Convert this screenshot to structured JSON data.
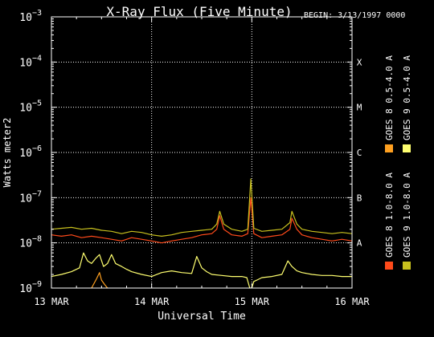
{
  "chart_data": {
    "type": "line",
    "title": "X-Ray Flux (Five Minute)",
    "begin_label": "BEGIN: 3/13/1997 0000",
    "ylabel": "Watts meter2",
    "xlabel": "Universal Time",
    "y_scale": "log",
    "ylim": [
      1e-09,
      0.001
    ],
    "y_ticks": [
      {
        "value": 1e-09,
        "base": "10",
        "exp": "−9"
      },
      {
        "value": 1e-08,
        "base": "10",
        "exp": "−8"
      },
      {
        "value": 1e-07,
        "base": "10",
        "exp": "−7"
      },
      {
        "value": 1e-06,
        "base": "10",
        "exp": "−6"
      },
      {
        "value": 1e-05,
        "base": "10",
        "exp": "−5"
      },
      {
        "value": 0.0001,
        "base": "10",
        "exp": "−4"
      },
      {
        "value": 0.001,
        "base": "10",
        "exp": "−3"
      }
    ],
    "xlim": [
      "1997-03-13",
      "1997-03-16"
    ],
    "x_ticks": [
      {
        "value": 0,
        "label": "13 MAR"
      },
      {
        "value": 1,
        "label": "14 MAR"
      },
      {
        "value": 2,
        "label": "15 MAR"
      },
      {
        "value": 3,
        "label": "16 MAR"
      }
    ],
    "flare_classes": [
      {
        "label": "A",
        "value": 1e-08
      },
      {
        "label": "B",
        "value": 1e-07
      },
      {
        "label": "C",
        "value": 1e-06
      },
      {
        "label": "M",
        "value": 1e-05
      },
      {
        "label": "X",
        "value": 0.0001
      }
    ],
    "grid": true,
    "legend_position": "right, vertical",
    "series": [
      {
        "name": "GOES 8 1.0-8.0 A",
        "color": "#ff4a1a",
        "x": [
          0.0,
          0.1,
          0.2,
          0.3,
          0.4,
          0.5,
          0.6,
          0.7,
          0.8,
          0.9,
          1.0,
          1.1,
          1.2,
          1.3,
          1.4,
          1.5,
          1.6,
          1.65,
          1.68,
          1.72,
          1.8,
          1.9,
          1.96,
          1.99,
          2.02,
          2.1,
          2.2,
          2.3,
          2.38,
          2.4,
          2.45,
          2.5,
          2.6,
          2.7,
          2.8,
          2.9,
          3.0
        ],
        "y": [
          1.5e-08,
          1.4e-08,
          1.5e-08,
          1.3e-08,
          1.4e-08,
          1.3e-08,
          1.2e-08,
          1.1e-08,
          1.3e-08,
          1.2e-08,
          1.1e-08,
          1e-08,
          1.1e-08,
          1.2e-08,
          1.3e-08,
          1.5e-08,
          1.6e-08,
          2e-08,
          4e-08,
          2e-08,
          1.5e-08,
          1.4e-08,
          1.6e-08,
          1e-07,
          1.6e-08,
          1.3e-08,
          1.4e-08,
          1.5e-08,
          2e-08,
          3.5e-08,
          2e-08,
          1.5e-08,
          1.3e-08,
          1.2e-08,
          1.1e-08,
          1.2e-08,
          1.1e-08
        ]
      },
      {
        "name": "GOES 8 0.5-4.0 A",
        "color": "#ffa020",
        "x": [
          0.4,
          0.45,
          0.48,
          0.5,
          0.53,
          0.56
        ],
        "y": [
          1e-09,
          1.6e-09,
          2.2e-09,
          1.5e-09,
          1.2e-09,
          1e-09
        ]
      },
      {
        "name": "GOES 9 0.5-4.0 A",
        "color": "#ffff70",
        "x": [
          0.0,
          0.1,
          0.2,
          0.28,
          0.32,
          0.36,
          0.4,
          0.44,
          0.48,
          0.52,
          0.56,
          0.6,
          0.64,
          0.7,
          0.75,
          0.8,
          0.9,
          1.0,
          1.1,
          1.2,
          1.3,
          1.4,
          1.45,
          1.5,
          1.55,
          1.6,
          1.7,
          1.8,
          1.9,
          1.95,
          1.98,
          2.0,
          2.02,
          2.05,
          2.1,
          2.2,
          2.3,
          2.36,
          2.4,
          2.45,
          2.5,
          2.6,
          2.7,
          2.8,
          2.9,
          3.0
        ],
        "y": [
          1.8e-09,
          2e-09,
          2.3e-09,
          2.8e-09,
          6e-09,
          4e-09,
          3.5e-09,
          4.5e-09,
          5.5e-09,
          3e-09,
          3.5e-09,
          5.5e-09,
          3.5e-09,
          3e-09,
          2.6e-09,
          2.3e-09,
          2e-09,
          1.8e-09,
          2.2e-09,
          2.4e-09,
          2.2e-09,
          2.1e-09,
          5e-09,
          2.8e-09,
          2.3e-09,
          2e-09,
          1.9e-09,
          1.8e-09,
          1.8e-09,
          1.7e-09,
          1e-09,
          1e-09,
          1.4e-09,
          1.5e-09,
          1.7e-09,
          1.8e-09,
          2e-09,
          4e-09,
          3e-09,
          2.4e-09,
          2.2e-09,
          2e-09,
          1.9e-09,
          1.9e-09,
          1.8e-09,
          1.8e-09
        ]
      },
      {
        "name": "GOES 9 1.0-8.0 A",
        "color": "#c8c01e",
        "x": [
          0.0,
          0.1,
          0.2,
          0.3,
          0.4,
          0.5,
          0.6,
          0.7,
          0.8,
          0.9,
          1.0,
          1.1,
          1.2,
          1.3,
          1.4,
          1.5,
          1.6,
          1.65,
          1.68,
          1.72,
          1.8,
          1.9,
          1.96,
          1.99,
          2.02,
          2.1,
          2.2,
          2.3,
          2.38,
          2.4,
          2.45,
          2.5,
          2.6,
          2.7,
          2.8,
          2.9,
          3.0
        ],
        "y": [
          2e-08,
          2.1e-08,
          2.2e-08,
          2e-08,
          2.1e-08,
          1.9e-08,
          1.8e-08,
          1.6e-08,
          1.8e-08,
          1.7e-08,
          1.5e-08,
          1.4e-08,
          1.5e-08,
          1.7e-08,
          1.8e-08,
          1.9e-08,
          2e-08,
          2.6e-08,
          5e-08,
          2.6e-08,
          2e-08,
          1.8e-08,
          2e-08,
          2.6e-07,
          2.1e-08,
          1.8e-08,
          1.9e-08,
          2e-08,
          2.8e-08,
          5e-08,
          2.6e-08,
          2e-08,
          1.8e-08,
          1.7e-08,
          1.6e-08,
          1.7e-08,
          1.6e-08
        ]
      }
    ]
  }
}
